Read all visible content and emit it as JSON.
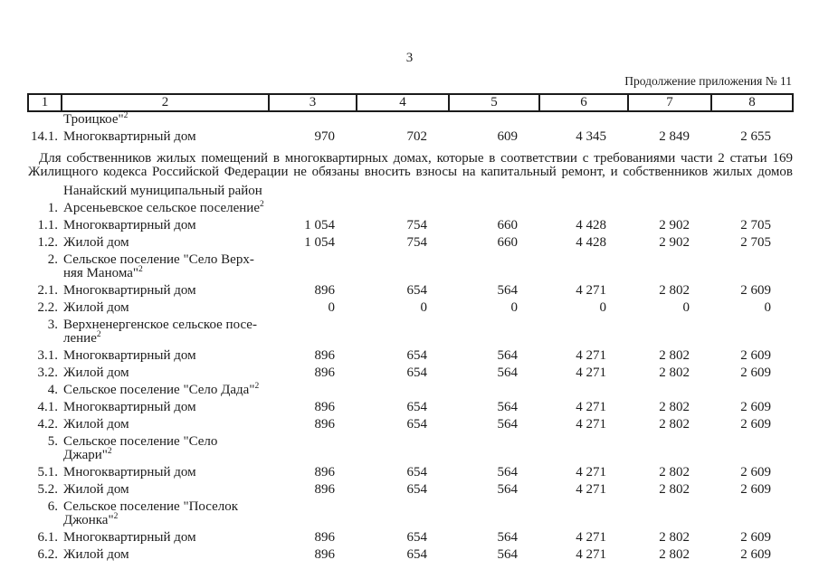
{
  "page": {
    "number": "3",
    "continuation": "Продолжение приложения № 11"
  },
  "table": {
    "header": [
      "1",
      "2",
      "3",
      "4",
      "5",
      "6",
      "7",
      "8"
    ],
    "rows": [
      {
        "type": "name",
        "num": "",
        "name": "Троицкое\"",
        "sup": "2",
        "tight": true
      },
      {
        "type": "data",
        "num": "14.1.",
        "name": "Многоквартирный дом",
        "values": [
          "970",
          "702",
          "609",
          "4 345",
          "2 849",
          "2 655"
        ]
      },
      {
        "type": "note",
        "text": "Для собственников жилых помещений в многоквартирных домах, которые в соответствии с требованиями части 2 статьи 169 Жилищного кодекса Российской Федерации не обязаны вносить взносы на капитальный ремонт, и собственников жилых домов"
      },
      {
        "type": "name",
        "num": "",
        "name": "Нанайский муниципальный район"
      },
      {
        "type": "name",
        "num": "1.",
        "name": "Арсеньевское сельское поселение",
        "sup": "2"
      },
      {
        "type": "data",
        "num": "1.1.",
        "name": "Многоквартирный дом",
        "values": [
          "1 054",
          "754",
          "660",
          "4 428",
          "2 902",
          "2 705"
        ]
      },
      {
        "type": "data",
        "num": "1.2.",
        "name": "Жилой дом",
        "values": [
          "1 054",
          "754",
          "660",
          "4 428",
          "2 902",
          "2 705"
        ]
      },
      {
        "type": "name",
        "num": "2.",
        "name": "Сельское поселение \"Село Верх-\nняя Манома\"",
        "sup": "2"
      },
      {
        "type": "data",
        "num": "2.1.",
        "name": "Многоквартирный дом",
        "values": [
          "896",
          "654",
          "564",
          "4 271",
          "2 802",
          "2 609"
        ]
      },
      {
        "type": "data",
        "num": "2.2.",
        "name": "Жилой дом",
        "values": [
          "0",
          "0",
          "0",
          "0",
          "0",
          "0"
        ]
      },
      {
        "type": "name",
        "num": "3.",
        "name": "Верхненергенское сельское посе-\nление",
        "sup": "2"
      },
      {
        "type": "data",
        "num": "3.1.",
        "name": "Многоквартирный дом",
        "values": [
          "896",
          "654",
          "564",
          "4 271",
          "2 802",
          "2 609"
        ]
      },
      {
        "type": "data",
        "num": "3.2.",
        "name": "Жилой дом",
        "values": [
          "896",
          "654",
          "564",
          "4 271",
          "2 802",
          "2 609"
        ]
      },
      {
        "type": "name",
        "num": "4.",
        "name": "Сельское поселение \"Село Дада\"",
        "sup": "2"
      },
      {
        "type": "data",
        "num": "4.1.",
        "name": "Многоквартирный дом",
        "values": [
          "896",
          "654",
          "564",
          "4 271",
          "2 802",
          "2 609"
        ]
      },
      {
        "type": "data",
        "num": "4.2.",
        "name": "Жилой дом",
        "values": [
          "896",
          "654",
          "564",
          "4 271",
          "2 802",
          "2 609"
        ]
      },
      {
        "type": "name",
        "num": "5.",
        "name": "Сельское поселение \"Село Джари\"",
        "sup": "2"
      },
      {
        "type": "data",
        "num": "5.1.",
        "name": "Многоквартирный дом",
        "values": [
          "896",
          "654",
          "564",
          "4 271",
          "2 802",
          "2 609"
        ]
      },
      {
        "type": "data",
        "num": "5.2.",
        "name": "Жилой дом",
        "values": [
          "896",
          "654",
          "564",
          "4 271",
          "2 802",
          "2 609"
        ]
      },
      {
        "type": "name",
        "num": "6.",
        "name": "Сельское поселение \"Поселок\nДжонка\"",
        "sup": "2"
      },
      {
        "type": "data",
        "num": "6.1.",
        "name": "Многоквартирный дом",
        "values": [
          "896",
          "654",
          "564",
          "4 271",
          "2 802",
          "2 609"
        ]
      },
      {
        "type": "data",
        "num": "6.2.",
        "name": "Жилой дом",
        "values": [
          "896",
          "654",
          "564",
          "4 271",
          "2 802",
          "2 609"
        ]
      }
    ]
  }
}
